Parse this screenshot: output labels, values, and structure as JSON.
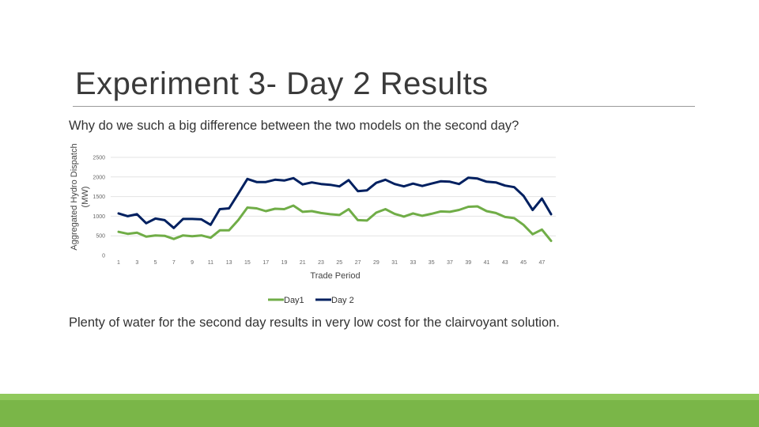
{
  "slide": {
    "title": "Experiment 3- Day 2 Results",
    "question": "Why do we such a big difference between the two models on the second day?",
    "conclusion": "Plenty of water for the second day results in very low cost for the clairvoyant solution."
  },
  "chart_data": {
    "type": "line",
    "xlabel": "Trade Period",
    "ylabel_lines": [
      "Aggregated Hydro Dispatch",
      "(MW)"
    ],
    "ylim": [
      0,
      2500
    ],
    "yticks": [
      0,
      500,
      1000,
      1500,
      2000,
      2500
    ],
    "x": [
      1,
      2,
      3,
      4,
      5,
      6,
      7,
      8,
      9,
      10,
      11,
      12,
      13,
      14,
      15,
      16,
      17,
      18,
      19,
      20,
      21,
      22,
      23,
      24,
      25,
      26,
      27,
      28,
      29,
      30,
      31,
      32,
      33,
      34,
      35,
      36,
      37,
      38,
      39,
      40,
      41,
      42,
      43,
      44,
      45,
      46,
      47,
      48
    ],
    "xtick_labels": [
      "1",
      "3",
      "5",
      "7",
      "9",
      "11",
      "13",
      "15",
      "17",
      "19",
      "21",
      "23",
      "25",
      "27",
      "29",
      "31",
      "33",
      "35",
      "37",
      "39",
      "41",
      "43",
      "45",
      "47"
    ],
    "grid": "horizontal",
    "legend_position": "bottom",
    "series": [
      {
        "name": "Day1",
        "color": "#70ad47",
        "values": [
          600,
          550,
          580,
          480,
          510,
          500,
          420,
          510,
          490,
          510,
          450,
          640,
          640,
          900,
          1220,
          1200,
          1130,
          1190,
          1180,
          1270,
          1110,
          1130,
          1080,
          1050,
          1030,
          1180,
          900,
          890,
          1090,
          1180,
          1060,
          990,
          1070,
          1010,
          1060,
          1120,
          1110,
          1160,
          1240,
          1250,
          1130,
          1080,
          980,
          950,
          780,
          540,
          660,
          370
        ]
      },
      {
        "name": "Day 2",
        "color": "#002060",
        "values": [
          1070,
          1000,
          1050,
          820,
          940,
          900,
          700,
          930,
          930,
          920,
          780,
          1180,
          1200,
          1570,
          1950,
          1870,
          1870,
          1930,
          1910,
          1970,
          1810,
          1860,
          1820,
          1800,
          1760,
          1920,
          1640,
          1660,
          1850,
          1930,
          1820,
          1760,
          1830,
          1770,
          1830,
          1890,
          1880,
          1820,
          1980,
          1960,
          1880,
          1860,
          1780,
          1740,
          1520,
          1160,
          1450,
          1050
        ]
      }
    ]
  }
}
